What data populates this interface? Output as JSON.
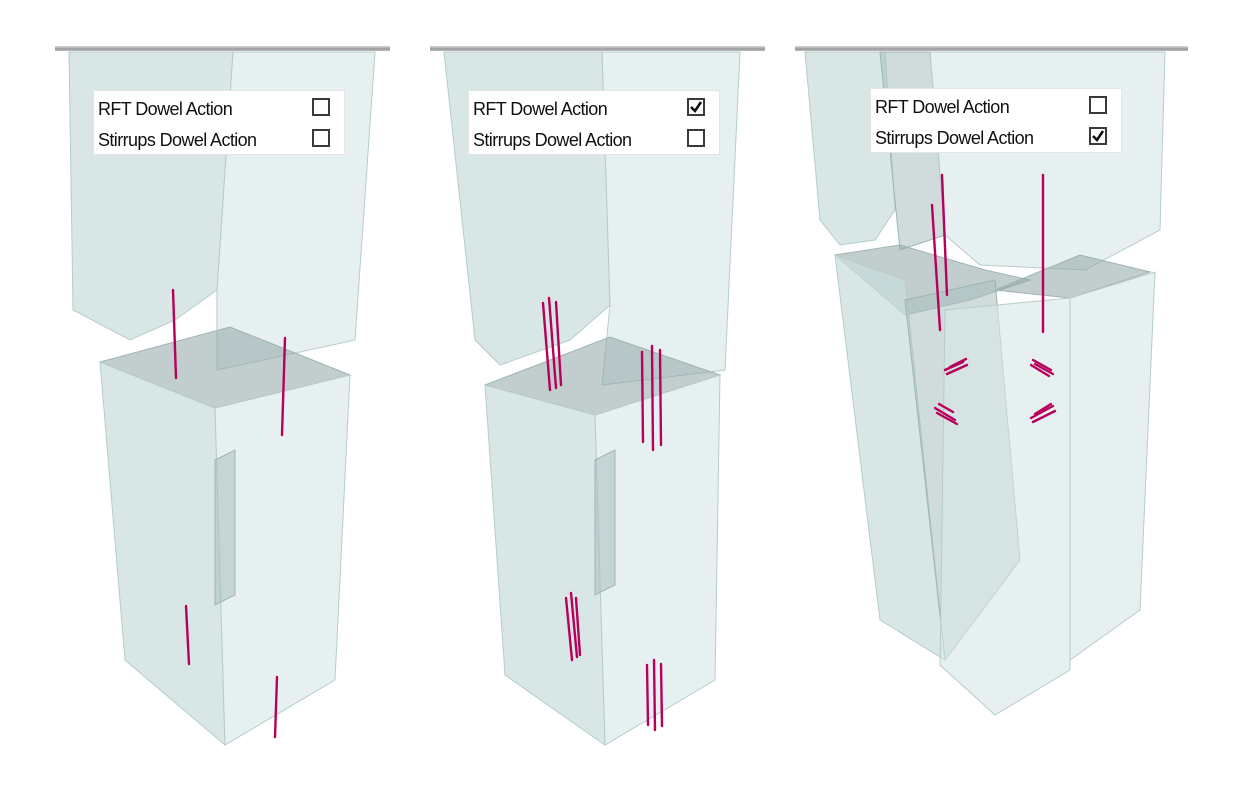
{
  "panels": [
    {
      "rft_dowel_action": {
        "label": "RFT  Dowel Action",
        "checked": false
      },
      "stirrups_dowel_action": {
        "label": "Stirrups Dowel Action",
        "checked": false
      }
    },
    {
      "rft_dowel_action": {
        "label": "RFT  Dowel Action",
        "checked": true
      },
      "stirrups_dowel_action": {
        "label": "Stirrups Dowel Action",
        "checked": false
      }
    },
    {
      "rft_dowel_action": {
        "label": "RFT  Dowel Action",
        "checked": false
      },
      "stirrups_dowel_action": {
        "label": "Stirrups Dowel Action",
        "checked": true
      }
    }
  ],
  "colors": {
    "concrete": "#c9dcdc",
    "joint_shadow": "#8fa5a5",
    "reinforcement": "#b8005a"
  }
}
